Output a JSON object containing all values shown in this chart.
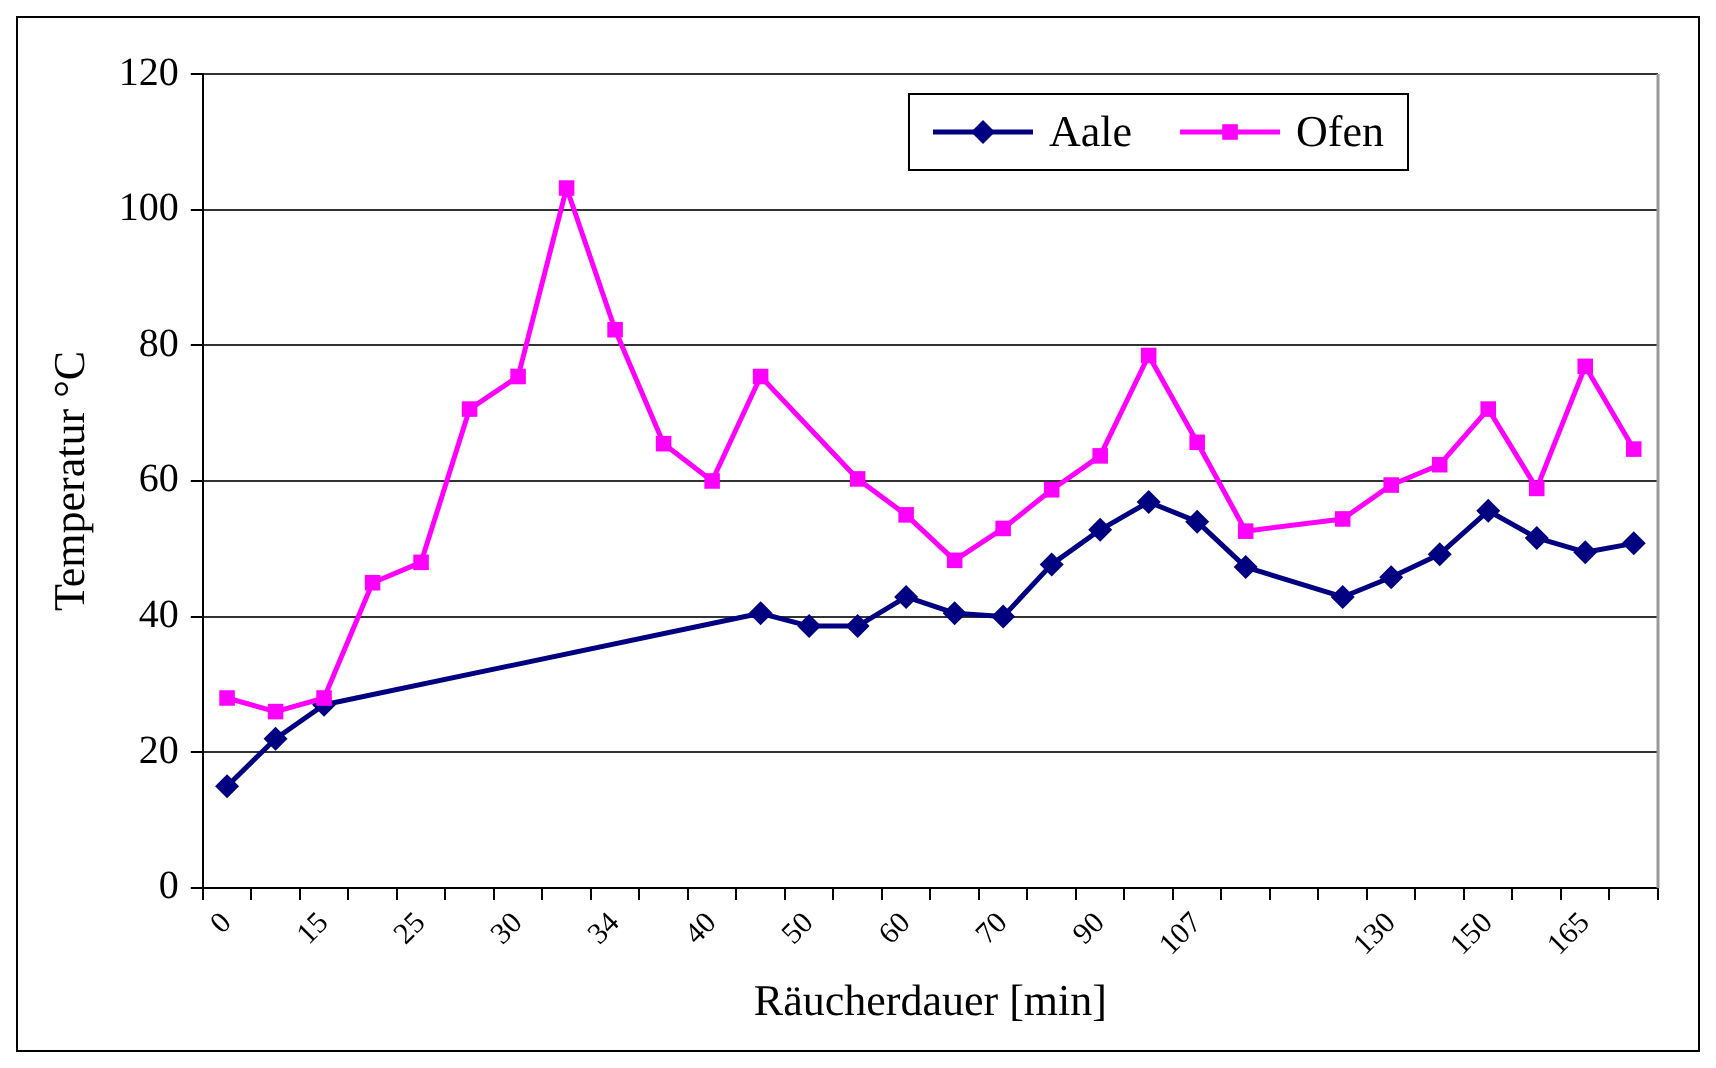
{
  "chart_data": {
    "type": "line",
    "xlabel": "Räucherdauer [min]",
    "ylabel": "Temperatur °C",
    "categories": [
      "0",
      null,
      "15",
      null,
      "25",
      null,
      "30",
      null,
      "34",
      null,
      "40",
      null,
      "50",
      null,
      "60",
      null,
      "70",
      null,
      "90",
      null,
      "107",
      null,
      null,
      null,
      "130",
      null,
      "150",
      null,
      "165",
      null
    ],
    "series": [
      {
        "name": "Aale",
        "color": "#000080",
        "marker": "diamond",
        "values": [
          15,
          22,
          27,
          null,
          null,
          null,
          null,
          null,
          null,
          null,
          null,
          40.5,
          38.6,
          38.6,
          42.9,
          40.5,
          40,
          47.7,
          52.8,
          56.9,
          54,
          47.3,
          null,
          42.9,
          45.8,
          49.2,
          55.6,
          51.6,
          49.5,
          50.8
        ]
      },
      {
        "name": "Ofen",
        "color": "#ff00ff",
        "marker": "square",
        "values": [
          28,
          26,
          28,
          45,
          48,
          70.6,
          75.4,
          103.2,
          82.3,
          65.5,
          60,
          75.4,
          null,
          60.3,
          55,
          48.3,
          53,
          58.7,
          63.7,
          78.5,
          65.7,
          52.6,
          null,
          54.4,
          59.4,
          62.4,
          70.6,
          58.9,
          76.9,
          64.7
        ]
      }
    ],
    "ylim": [
      0,
      120
    ],
    "yticks": [
      0,
      20,
      40,
      60,
      80,
      100,
      120
    ],
    "grid": "y",
    "legend": "top right"
  }
}
